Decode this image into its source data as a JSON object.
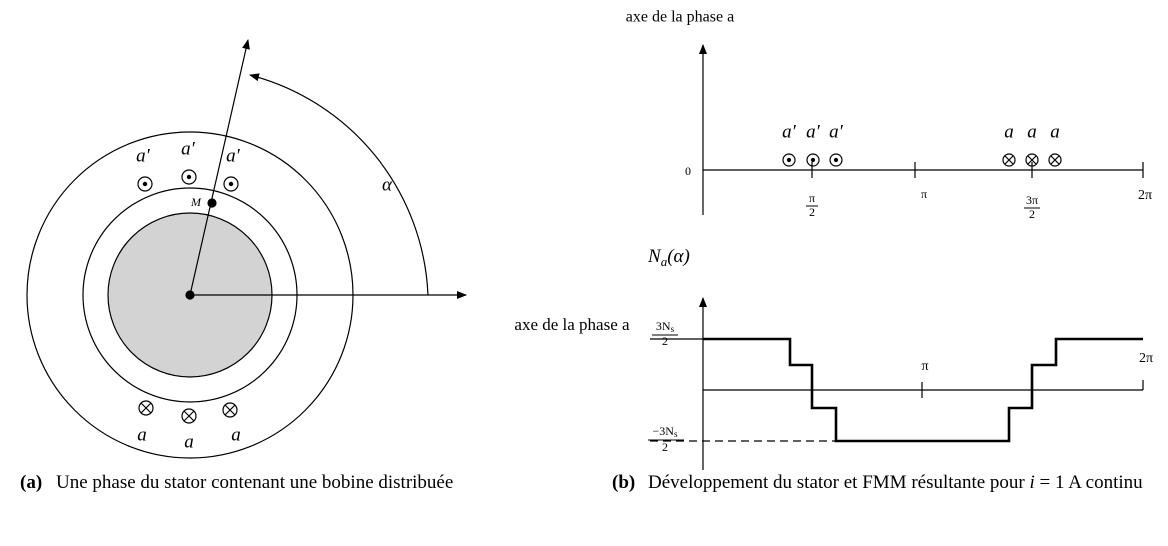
{
  "panel_a": {
    "conductors_top": [
      "a′",
      "a′",
      "a′"
    ],
    "conductors_bottom": [
      "a",
      "a",
      "a"
    ],
    "point": "M",
    "angle": "α",
    "axis_label": "axe de la phase a",
    "caption": {
      "tag": "(a)",
      "text": "Une phase du stator contenant une bobine distribuée"
    }
  },
  "panel_b": {
    "top": {
      "axis_label": "axe de la phase a",
      "origin": "0",
      "ticks": [
        {
          "num": "π",
          "den": "2"
        },
        "π",
        {
          "num": "3π",
          "den": "2"
        },
        "2π"
      ],
      "conductors_left": [
        "a′",
        "a′",
        "a′"
      ],
      "conductors_right": [
        "a",
        "a",
        "a"
      ]
    },
    "bottom": {
      "axis_label": {
        "base": "N",
        "sub": "a",
        "rest": "(α)"
      },
      "upper_level": {
        "num": "3N",
        "sub": "s",
        "den": "2"
      },
      "lower_level": {
        "num": "−3N",
        "sub": "s",
        "den": "2"
      },
      "ticks": [
        "π",
        "2π"
      ]
    },
    "caption": {
      "tag": "(b)",
      "text": "Développement du stator et FMM résultante pour ",
      "math": "i",
      "rest": " = 1 A continu"
    }
  }
}
